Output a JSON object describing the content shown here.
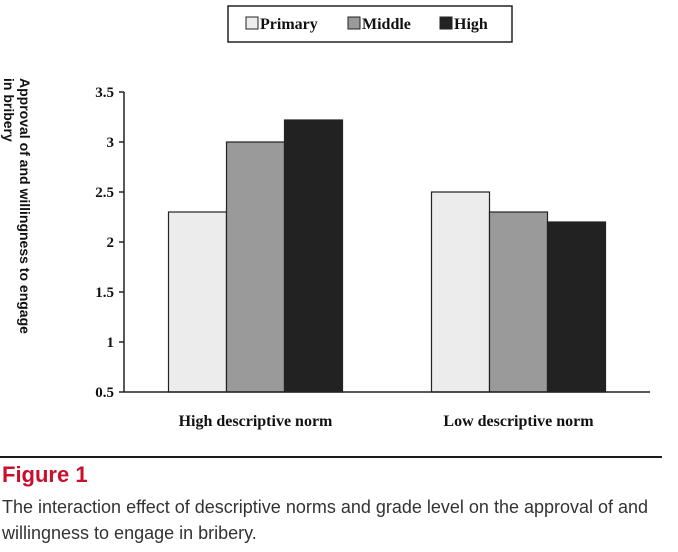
{
  "chart_data": {
    "type": "bar",
    "title": "",
    "xlabel": "",
    "ylabel": "Approval of and willingness to engage in bribery",
    "ylabel_lines": [
      "Approval of and willingness to engage",
      "in bribery"
    ],
    "categories": [
      "High descriptive norm",
      "Low descriptive norm"
    ],
    "series": [
      {
        "name": "Primary",
        "values": [
          2.3,
          2.5
        ]
      },
      {
        "name": "Middle",
        "values": [
          3.0,
          2.3
        ]
      },
      {
        "name": "High",
        "values": [
          3.22,
          2.2
        ]
      }
    ],
    "ylim": [
      0.5,
      3.5
    ],
    "yticks": [
      0.5,
      1,
      1.5,
      2,
      2.5,
      3,
      3.5
    ],
    "ytick_labels": [
      "0.5",
      "1",
      "1.5",
      "2",
      "2.5",
      "3",
      "3.5"
    ],
    "grid": false,
    "legend_position": "top-center"
  },
  "colors": {
    "Primary": "#ececec",
    "Middle": "#9a9a9a",
    "High": "#222222",
    "axis": "#222222"
  },
  "figure": {
    "label": "Figure 1",
    "caption": "The interaction effect of descriptive norms and grade level on the approval of and willingness to engage in bribery."
  }
}
